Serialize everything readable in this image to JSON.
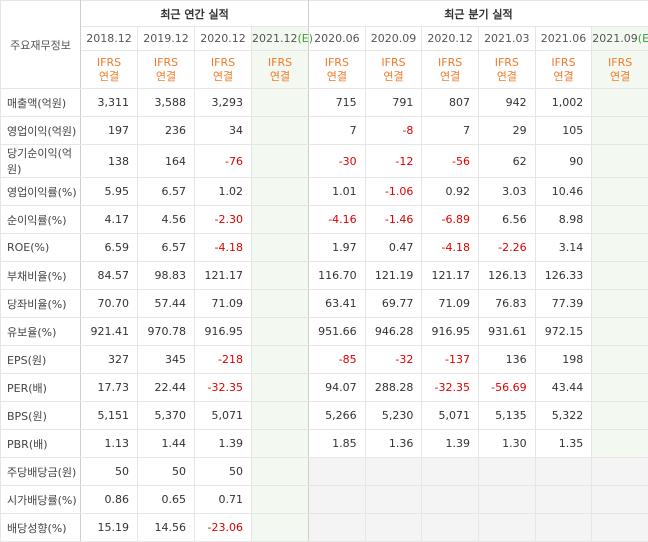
{
  "header": {
    "label": "주요재무정보",
    "annual_title": "최근 연간 실적",
    "quarterly_title": "최근 분기 실적"
  },
  "columns": [
    {
      "date": "2018.12",
      "mark": null,
      "standard": "IFRS",
      "scope": "연결"
    },
    {
      "date": "2019.12",
      "mark": null,
      "standard": "IFRS",
      "scope": "연결"
    },
    {
      "date": "2020.12",
      "mark": null,
      "standard": "IFRS",
      "scope": "연결"
    },
    {
      "date": "2021.12",
      "mark": "(E)",
      "standard": "IFRS",
      "scope": "연결"
    },
    {
      "date": "2020.06",
      "mark": null,
      "standard": "IFRS",
      "scope": "연결"
    },
    {
      "date": "2020.09",
      "mark": null,
      "standard": "IFRS",
      "scope": "연결"
    },
    {
      "date": "2020.12",
      "mark": null,
      "standard": "IFRS",
      "scope": "연결"
    },
    {
      "date": "2021.03",
      "mark": null,
      "standard": "IFRS",
      "scope": "연결"
    },
    {
      "date": "2021.06",
      "mark": null,
      "standard": "IFRS",
      "scope": "연결"
    },
    {
      "date": "2021.09",
      "mark": "(E)",
      "standard": "IFRS",
      "scope": "연결"
    }
  ],
  "rows": [
    {
      "label": "매출액(억원)",
      "values": [
        "3,311",
        "3,588",
        "3,293",
        null,
        "715",
        "791",
        "807",
        "942",
        "1,002",
        null
      ]
    },
    {
      "label": "영업이익(억원)",
      "values": [
        "197",
        "236",
        "34",
        null,
        "7",
        "-8",
        "7",
        "29",
        "105",
        null
      ]
    },
    {
      "label": "당기순이익(억원)",
      "values": [
        "138",
        "164",
        "-76",
        null,
        "-30",
        "-12",
        "-56",
        "62",
        "90",
        null
      ]
    },
    {
      "label": "영업이익률(%)",
      "values": [
        "5.95",
        "6.57",
        "1.02",
        null,
        "1.01",
        "-1.06",
        "0.92",
        "3.03",
        "10.46",
        null
      ]
    },
    {
      "label": "순이익률(%)",
      "values": [
        "4.17",
        "4.56",
        "-2.30",
        null,
        "-4.16",
        "-1.46",
        "-6.89",
        "6.56",
        "8.98",
        null
      ]
    },
    {
      "label": "ROE(%)",
      "values": [
        "6.59",
        "6.57",
        "-4.18",
        null,
        "1.97",
        "0.47",
        "-4.18",
        "-2.26",
        "3.14",
        null
      ]
    },
    {
      "label": "부채비율(%)",
      "values": [
        "84.57",
        "98.83",
        "121.17",
        null,
        "116.70",
        "121.19",
        "121.17",
        "126.13",
        "126.33",
        null
      ]
    },
    {
      "label": "당좌비율(%)",
      "values": [
        "70.70",
        "57.44",
        "71.09",
        null,
        "63.41",
        "69.77",
        "71.09",
        "76.83",
        "77.39",
        null
      ]
    },
    {
      "label": "유보율(%)",
      "values": [
        "921.41",
        "970.78",
        "916.95",
        null,
        "951.66",
        "946.28",
        "916.95",
        "931.61",
        "972.15",
        null
      ]
    },
    {
      "label": "EPS(원)",
      "values": [
        "327",
        "345",
        "-218",
        null,
        "-85",
        "-32",
        "-137",
        "136",
        "198",
        null
      ]
    },
    {
      "label": "PER(배)",
      "values": [
        "17.73",
        "22.44",
        "-32.35",
        null,
        "94.07",
        "288.28",
        "-32.35",
        "-56.69",
        "43.44",
        null
      ]
    },
    {
      "label": "BPS(원)",
      "values": [
        "5,151",
        "5,370",
        "5,071",
        null,
        "5,266",
        "5,230",
        "5,071",
        "5,135",
        "5,322",
        null
      ]
    },
    {
      "label": "PBR(배)",
      "values": [
        "1.13",
        "1.44",
        "1.39",
        null,
        "1.85",
        "1.36",
        "1.39",
        "1.30",
        "1.35",
        null
      ]
    },
    {
      "label": "주당배당금(원)",
      "values": [
        "50",
        "50",
        "50",
        null,
        null,
        null,
        null,
        null,
        null,
        null
      ]
    },
    {
      "label": "시가배당률(%)",
      "values": [
        "0.86",
        "0.65",
        "0.71",
        null,
        null,
        null,
        null,
        null,
        null,
        null
      ]
    },
    {
      "label": "배당성향(%)",
      "values": [
        "15.19",
        "14.56",
        "-23.06",
        null,
        null,
        null,
        null,
        null,
        null,
        null
      ]
    }
  ]
}
